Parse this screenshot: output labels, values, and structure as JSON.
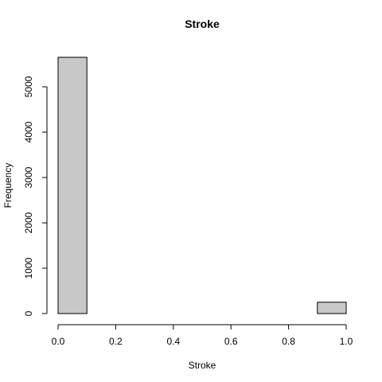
{
  "chart_data": {
    "type": "bar",
    "title": "Stroke",
    "xlabel": "Stroke",
    "ylabel": "Frequency",
    "bins": [
      {
        "x0": 0.0,
        "x1": 0.1,
        "count": 5650
      },
      {
        "x0": 0.1,
        "x1": 0.2,
        "count": 0
      },
      {
        "x0": 0.2,
        "x1": 0.3,
        "count": 0
      },
      {
        "x0": 0.3,
        "x1": 0.4,
        "count": 0
      },
      {
        "x0": 0.4,
        "x1": 0.5,
        "count": 0
      },
      {
        "x0": 0.5,
        "x1": 0.6,
        "count": 0
      },
      {
        "x0": 0.6,
        "x1": 0.7,
        "count": 0
      },
      {
        "x0": 0.7,
        "x1": 0.8,
        "count": 0
      },
      {
        "x0": 0.8,
        "x1": 0.9,
        "count": 0
      },
      {
        "x0": 0.9,
        "x1": 1.0,
        "count": 250
      }
    ],
    "xlim": [
      0,
      1
    ],
    "ylim": [
      0,
      5650
    ],
    "xticks": [
      0.0,
      0.2,
      0.4,
      0.6,
      0.8,
      1.0
    ],
    "xtick_labels": [
      "0.0",
      "0.2",
      "0.4",
      "0.6",
      "0.8",
      "1.0"
    ],
    "yticks": [
      0,
      1000,
      2000,
      3000,
      4000,
      5000
    ],
    "ytick_labels": [
      "0",
      "1000",
      "2000",
      "3000",
      "4000",
      "5000"
    ],
    "bar_color": "#c8c8c8",
    "grid": false
  }
}
